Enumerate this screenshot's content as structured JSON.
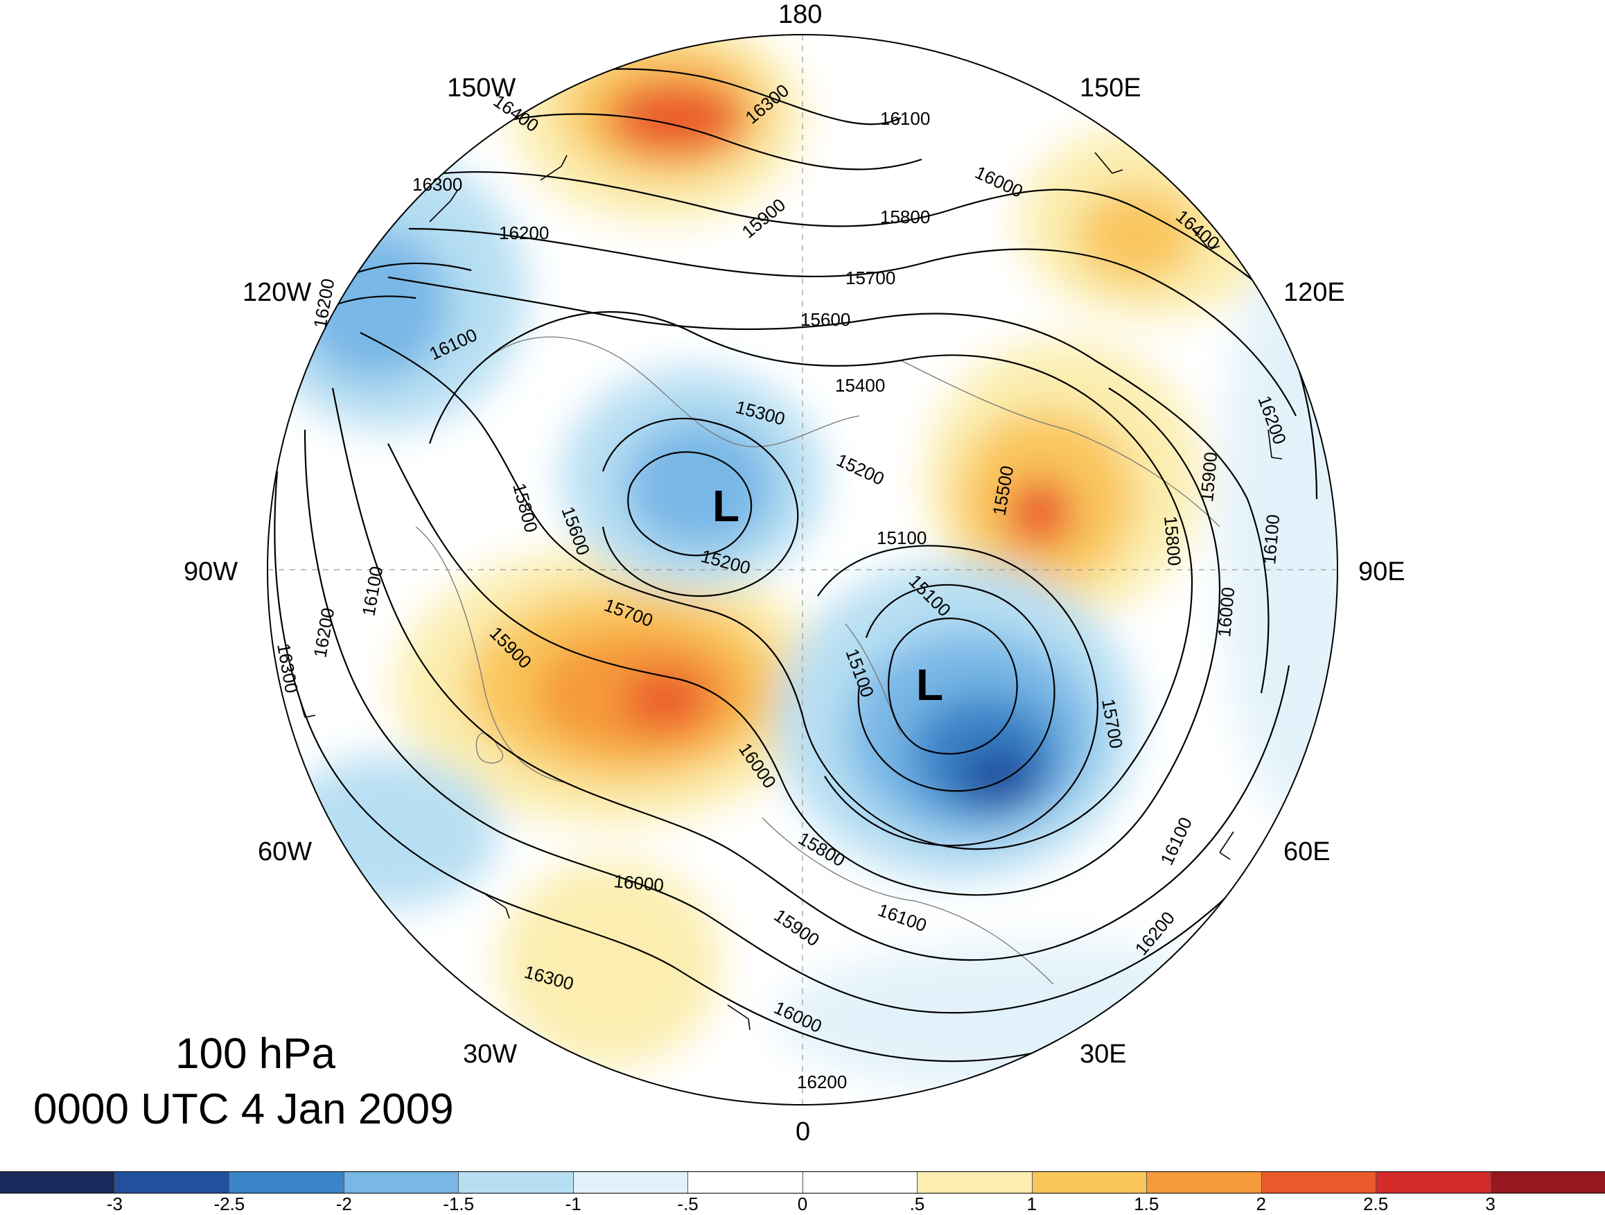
{
  "title": {
    "level": "100 hPa",
    "time": "0000 UTC 4 Jan 2009"
  },
  "longitude_labels": {
    "lon_180": "180",
    "lon_150w": "150W",
    "lon_150e": "150E",
    "lon_120w": "120W",
    "lon_120e": "120E",
    "lon_90w": "90W",
    "lon_90e": "90E",
    "lon_60w": "60W",
    "lon_60e": "60E",
    "lon_30w": "30W",
    "lon_30e": "30E",
    "lon_0": "0"
  },
  "low_marker": "L",
  "contour_labels": [
    "16400",
    "16300",
    "16100",
    "16000",
    "15800",
    "15900",
    "15700",
    "15600",
    "15400",
    "15300",
    "15200",
    "15100",
    "15500",
    "16200",
    "16300",
    "16400",
    "16200",
    "15900",
    "15800",
    "15700",
    "16100",
    "16000",
    "15900",
    "15800",
    "15700",
    "15600",
    "15200",
    "15100",
    "15100",
    "16200",
    "16100",
    "16300",
    "16200",
    "16100",
    "16000",
    "15800",
    "16000",
    "16100",
    "15900",
    "16000",
    "16100",
    "16200",
    "16300",
    "16200"
  ],
  "colorbar": {
    "colors": [
      "#1b2a5c",
      "#22509f",
      "#3a84c8",
      "#78b7e6",
      "#b7dff3",
      "#e3f2fa",
      "#ffffff",
      "#ffffff",
      "#fbeeb0",
      "#f9c65b",
      "#f59a3a",
      "#ea5a2b",
      "#d42a2a",
      "#98161d"
    ],
    "tick_labels": [
      "-3",
      "-2.5",
      "-2",
      "-1.5",
      "-1",
      "-.5",
      "0",
      ".5",
      "1",
      "1.5",
      "2",
      "2.5",
      "3"
    ]
  }
}
